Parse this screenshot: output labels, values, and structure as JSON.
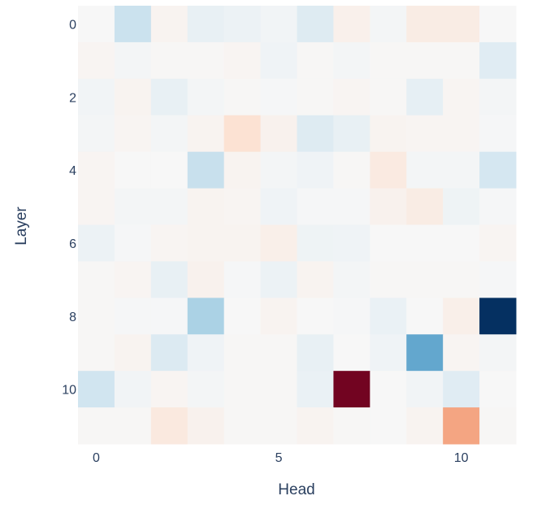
{
  "chart_data": {
    "type": "heatmap",
    "xlabel": "Head",
    "ylabel": "Layer",
    "x": [
      0,
      1,
      2,
      3,
      4,
      5,
      6,
      7,
      8,
      9,
      10,
      11
    ],
    "y": [
      0,
      1,
      2,
      3,
      4,
      5,
      6,
      7,
      8,
      9,
      10,
      11
    ],
    "x_tick_labels": [
      "0",
      "5",
      "10"
    ],
    "y_tick_labels": [
      "0",
      "2",
      "4",
      "6",
      "8",
      "10"
    ],
    "y_reversed": true,
    "colorscale": "RdBu (red = positive, blue = negative)",
    "zrange": [
      -1,
      1
    ],
    "z": [
      [
        0.0,
        -0.22,
        0.03,
        -0.08,
        -0.06,
        -0.03,
        -0.13,
        0.05,
        -0.02,
        0.08,
        0.08,
        0.0
      ],
      [
        0.02,
        -0.02,
        0.01,
        0.01,
        0.02,
        -0.04,
        0.01,
        -0.02,
        0.01,
        0.01,
        0.01,
        -0.12
      ],
      [
        -0.03,
        0.03,
        -0.08,
        -0.02,
        0.01,
        -0.01,
        0.01,
        0.02,
        0.01,
        -0.09,
        0.02,
        -0.02
      ],
      [
        -0.02,
        0.02,
        -0.02,
        0.03,
        0.15,
        0.04,
        -0.13,
        -0.08,
        0.03,
        0.02,
        0.02,
        -0.01
      ],
      [
        0.02,
        0.0,
        0.0,
        -0.23,
        0.03,
        -0.02,
        -0.04,
        0.01,
        0.09,
        -0.02,
        -0.02,
        -0.18
      ],
      [
        0.02,
        -0.02,
        -0.02,
        0.03,
        0.02,
        -0.04,
        -0.01,
        -0.01,
        0.04,
        0.08,
        -0.05,
        -0.01
      ],
      [
        -0.06,
        -0.01,
        0.02,
        0.03,
        0.03,
        0.06,
        -0.05,
        -0.04,
        0.0,
        0.0,
        0.0,
        0.02
      ],
      [
        0.01,
        0.02,
        -0.08,
        0.04,
        -0.01,
        -0.06,
        0.03,
        -0.02,
        0.01,
        0.01,
        0.01,
        -0.01
      ],
      [
        0.01,
        -0.01,
        -0.01,
        -0.32,
        0.0,
        0.03,
        0.0,
        -0.01,
        -0.07,
        0.0,
        0.06,
        -1.0
      ],
      [
        0.01,
        0.03,
        -0.14,
        -0.04,
        0.01,
        0.01,
        -0.08,
        0.0,
        -0.04,
        -0.52,
        0.02,
        -0.02
      ],
      [
        -0.2,
        -0.03,
        0.02,
        -0.02,
        0.01,
        0.01,
        -0.07,
        0.97,
        0.0,
        -0.03,
        -0.12,
        0.0
      ],
      [
        0.01,
        0.01,
        0.1,
        0.04,
        0.01,
        0.01,
        0.03,
        0.01,
        0.0,
        0.03,
        0.4,
        0.01
      ]
    ]
  }
}
